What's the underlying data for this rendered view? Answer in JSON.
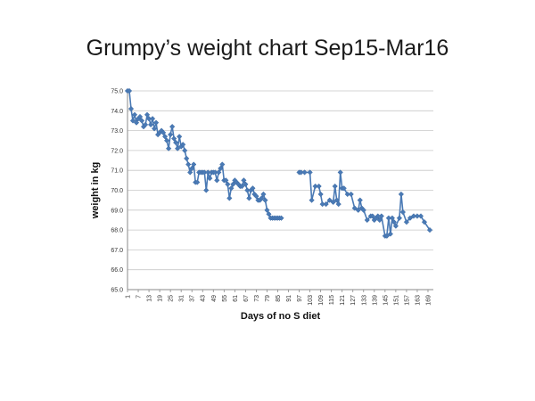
{
  "chart_data": {
    "type": "line",
    "title": "Grumpy’s weight chart Sep15-Mar16",
    "xlabel": "Days of no S diet",
    "ylabel": "weight in kg",
    "ylim": [
      65.0,
      75.0
    ],
    "yticks": [
      "65.0",
      "66.0",
      "67.0",
      "68.0",
      "69.0",
      "70.0",
      "71.0",
      "72.0",
      "73.0",
      "74.0",
      "75.0"
    ],
    "xlim": [
      1,
      172
    ],
    "xticks": [
      "1",
      "7",
      "13",
      "19",
      "25",
      "31",
      "37",
      "43",
      "49",
      "55",
      "61",
      "67",
      "73",
      "79",
      "85",
      "91",
      "97",
      "103",
      "109",
      "115",
      "121",
      "127",
      "133",
      "139",
      "145",
      "151",
      "157",
      "163",
      "169"
    ],
    "grid": true,
    "series_color": "#4a7ab5",
    "series": [
      {
        "x": [
          1,
          2,
          3,
          4,
          5,
          6,
          7,
          8,
          9,
          10,
          11,
          12,
          13,
          14,
          15,
          16,
          17,
          18,
          19,
          20,
          21,
          22,
          23,
          24,
          25,
          26,
          27,
          28,
          29,
          30,
          31,
          32,
          33,
          34,
          35,
          36,
          37,
          38,
          39,
          40,
          41,
          42,
          43,
          44,
          45,
          46,
          47,
          48,
          49,
          50,
          51,
          52,
          53,
          54,
          55,
          56,
          57,
          58,
          59,
          60,
          61,
          62,
          63,
          64,
          65,
          66,
          67,
          68,
          69,
          70,
          71,
          72,
          73,
          74,
          75,
          76,
          77,
          78,
          79,
          80,
          81,
          82,
          83,
          84,
          85,
          86,
          87,
          97,
          98,
          100,
          103,
          104,
          106,
          108,
          109,
          110,
          112,
          114,
          116,
          117,
          118,
          119,
          120,
          121,
          122,
          124,
          126,
          128,
          130,
          131,
          132,
          133,
          135,
          137,
          138,
          139,
          140,
          141,
          142,
          143,
          145,
          146,
          147,
          148,
          149,
          150,
          151,
          153,
          154,
          155,
          157,
          159,
          161,
          163,
          165,
          167,
          170
        ],
        "y": [
          75.0,
          75.0,
          74.1,
          73.5,
          73.8,
          73.4,
          73.6,
          73.7,
          73.5,
          73.2,
          73.3,
          73.8,
          73.6,
          73.3,
          73.6,
          73.1,
          73.4,
          72.8,
          72.9,
          73.0,
          72.9,
          72.7,
          72.5,
          72.1,
          72.8,
          73.2,
          72.6,
          72.4,
          72.1,
          72.7,
          72.2,
          72.3,
          72.0,
          71.6,
          71.3,
          70.9,
          71.1,
          71.3,
          70.4,
          70.4,
          70.9,
          70.9,
          70.9,
          70.9,
          70.0,
          70.9,
          70.6,
          70.9,
          70.9,
          70.9,
          70.5,
          70.9,
          71.1,
          71.3,
          70.5,
          70.5,
          70.3,
          69.6,
          70.1,
          70.3,
          70.5,
          70.4,
          70.3,
          70.2,
          70.2,
          70.5,
          70.3,
          70.0,
          69.6,
          70.0,
          70.1,
          69.8,
          69.7,
          69.5,
          69.5,
          69.6,
          69.8,
          69.5,
          69.0,
          68.8,
          68.6,
          68.6,
          68.6,
          68.6,
          68.6,
          68.6,
          68.6,
          70.9,
          70.9,
          70.9,
          70.9,
          69.5,
          70.2,
          70.2,
          69.8,
          69.3,
          69.3,
          69.5,
          69.4,
          70.2,
          69.5,
          69.3,
          70.9,
          70.1,
          70.1,
          69.8,
          69.8,
          69.1,
          69.0,
          69.5,
          69.1,
          69.0,
          68.5,
          68.7,
          68.7,
          68.5,
          68.6,
          68.7,
          68.5,
          68.7,
          67.7,
          67.7,
          68.6,
          67.8,
          68.6,
          68.4,
          68.2,
          68.6,
          69.8,
          68.9,
          68.4,
          68.6,
          68.7,
          68.7,
          68.7,
          68.4,
          68.0
        ]
      }
    ]
  }
}
